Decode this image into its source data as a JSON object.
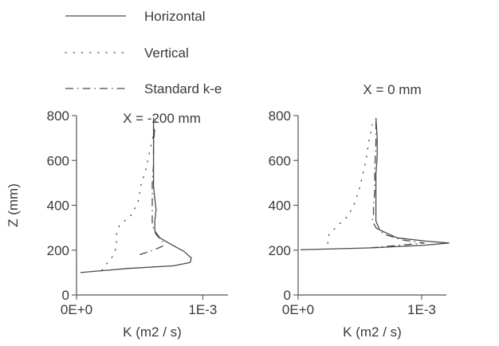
{
  "legend": [
    {
      "label": "Horizontal",
      "style": "solid"
    },
    {
      "label": "Vertical",
      "style": "dotted"
    },
    {
      "label": "Standard k-e",
      "style": "dash-dot"
    }
  ],
  "colors": {
    "line": "#4a4a4a",
    "axis": "#555555",
    "text": "#3a3a3a"
  },
  "chart_data": [
    {
      "type": "line",
      "title": "X = -200 mm",
      "xlabel": "K (m2 / s)",
      "ylabel": "Z (mm)",
      "xlim": [
        0,
        0.0012
      ],
      "ylim": [
        0,
        800
      ],
      "x_ticks": [
        {
          "value": 0,
          "label": "0E+0"
        },
        {
          "value": 0.001,
          "label": "1E-3"
        }
      ],
      "y_ticks": [
        {
          "value": 0,
          "label": "0"
        },
        {
          "value": 200,
          "label": "200"
        },
        {
          "value": 400,
          "label": "400"
        },
        {
          "value": 600,
          "label": "600"
        },
        {
          "value": 800,
          "label": "800"
        }
      ],
      "series": [
        {
          "name": "Horizontal",
          "style": "solid",
          "points": [
            [
              3e-05,
              100
            ],
            [
              0.0004,
              118
            ],
            [
              0.00077,
              130
            ],
            [
              0.0009,
              145
            ],
            [
              0.00091,
              165
            ],
            [
              0.00085,
              195
            ],
            [
              0.00075,
              225
            ],
            [
              0.00066,
              255
            ],
            [
              0.00062,
              285
            ],
            [
              0.00062,
              330
            ],
            [
              0.00063,
              380
            ],
            [
              0.00062,
              430
            ],
            [
              0.00061,
              480
            ],
            [
              0.00061,
              550
            ],
            [
              0.00061,
              620
            ],
            [
              0.00061,
              700
            ],
            [
              0.00061,
              790
            ]
          ]
        },
        {
          "name": "Vertical",
          "style": "dotted",
          "points": [
            [
              0.0002,
              110
            ],
            [
              0.00024,
              140
            ],
            [
              0.00029,
              175
            ],
            [
              0.00032,
              220
            ],
            [
              0.00031,
              260
            ],
            [
              0.00034,
              310
            ],
            [
              0.00044,
              360
            ],
            [
              0.00049,
              420
            ],
            [
              0.00051,
              490
            ],
            [
              0.00055,
              560
            ],
            [
              0.00058,
              640
            ],
            [
              0.00061,
              720
            ],
            [
              0.00063,
              790
            ]
          ]
        },
        {
          "name": "Standard k-e",
          "style": "dash-dot",
          "points": [
            [
              0.0005,
              180
            ],
            [
              0.00061,
              200
            ],
            [
              0.00069,
              220
            ],
            [
              0.00068,
              240
            ],
            [
              0.00063,
              270
            ],
            [
              0.0006,
              310
            ],
            [
              0.0006,
              360
            ],
            [
              0.0006,
              420
            ],
            [
              0.0006,
              500
            ],
            [
              0.00061,
              580
            ],
            [
              0.00061,
              660
            ],
            [
              0.00062,
              750
            ]
          ]
        }
      ]
    },
    {
      "type": "line",
      "title": "X = 0 mm",
      "xlabel": "K (m2 / s)",
      "ylabel": "",
      "xlim": [
        0,
        0.0012
      ],
      "ylim": [
        0,
        800
      ],
      "x_ticks": [
        {
          "value": 0,
          "label": "0E+0"
        },
        {
          "value": 0.001,
          "label": "1E-3"
        }
      ],
      "y_ticks": [
        {
          "value": 0,
          "label": "0"
        },
        {
          "value": 200,
          "label": "200"
        },
        {
          "value": 400,
          "label": "400"
        },
        {
          "value": 600,
          "label": "600"
        },
        {
          "value": 800,
          "label": "800"
        }
      ],
      "series": [
        {
          "name": "Horizontal",
          "style": "solid",
          "points": [
            [
              2e-05,
              202
            ],
            [
              0.0006,
              210
            ],
            [
              0.00102,
              222
            ],
            [
              0.00122,
              232
            ],
            [
              0.00104,
              240
            ],
            [
              0.0008,
              255
            ],
            [
              0.00066,
              290
            ],
            [
              0.00063,
              330
            ],
            [
              0.00063,
              370
            ],
            [
              0.00063,
              420
            ],
            [
              0.00063,
              480
            ],
            [
              0.00063,
              540
            ],
            [
              0.00064,
              620
            ],
            [
              0.00064,
              700
            ],
            [
              0.00063,
              790
            ]
          ]
        },
        {
          "name": "Vertical",
          "style": "dotted",
          "points": [
            [
              0.00024,
              230
            ],
            [
              0.00025,
              270
            ],
            [
              0.00032,
              310
            ],
            [
              0.0004,
              350
            ],
            [
              0.00045,
              400
            ],
            [
              0.00049,
              460
            ],
            [
              0.00052,
              530
            ],
            [
              0.00055,
              600
            ],
            [
              0.00057,
              680
            ],
            [
              0.0006,
              760
            ]
          ]
        },
        {
          "name": "Standard k-e",
          "style": "dash-dot",
          "points": [
            [
              0.00058,
              210
            ],
            [
              0.00082,
              222
            ],
            [
              0.00102,
              232
            ],
            [
              0.00085,
              245
            ],
            [
              0.0007,
              270
            ],
            [
              0.00063,
              300
            ],
            [
              0.0006,
              330
            ],
            [
              0.00061,
              360
            ],
            [
              0.00061,
              400
            ],
            [
              0.00062,
              460
            ],
            [
              0.00062,
              560
            ],
            [
              0.00063,
              680
            ],
            [
              0.00063,
              780
            ]
          ]
        }
      ]
    }
  ]
}
